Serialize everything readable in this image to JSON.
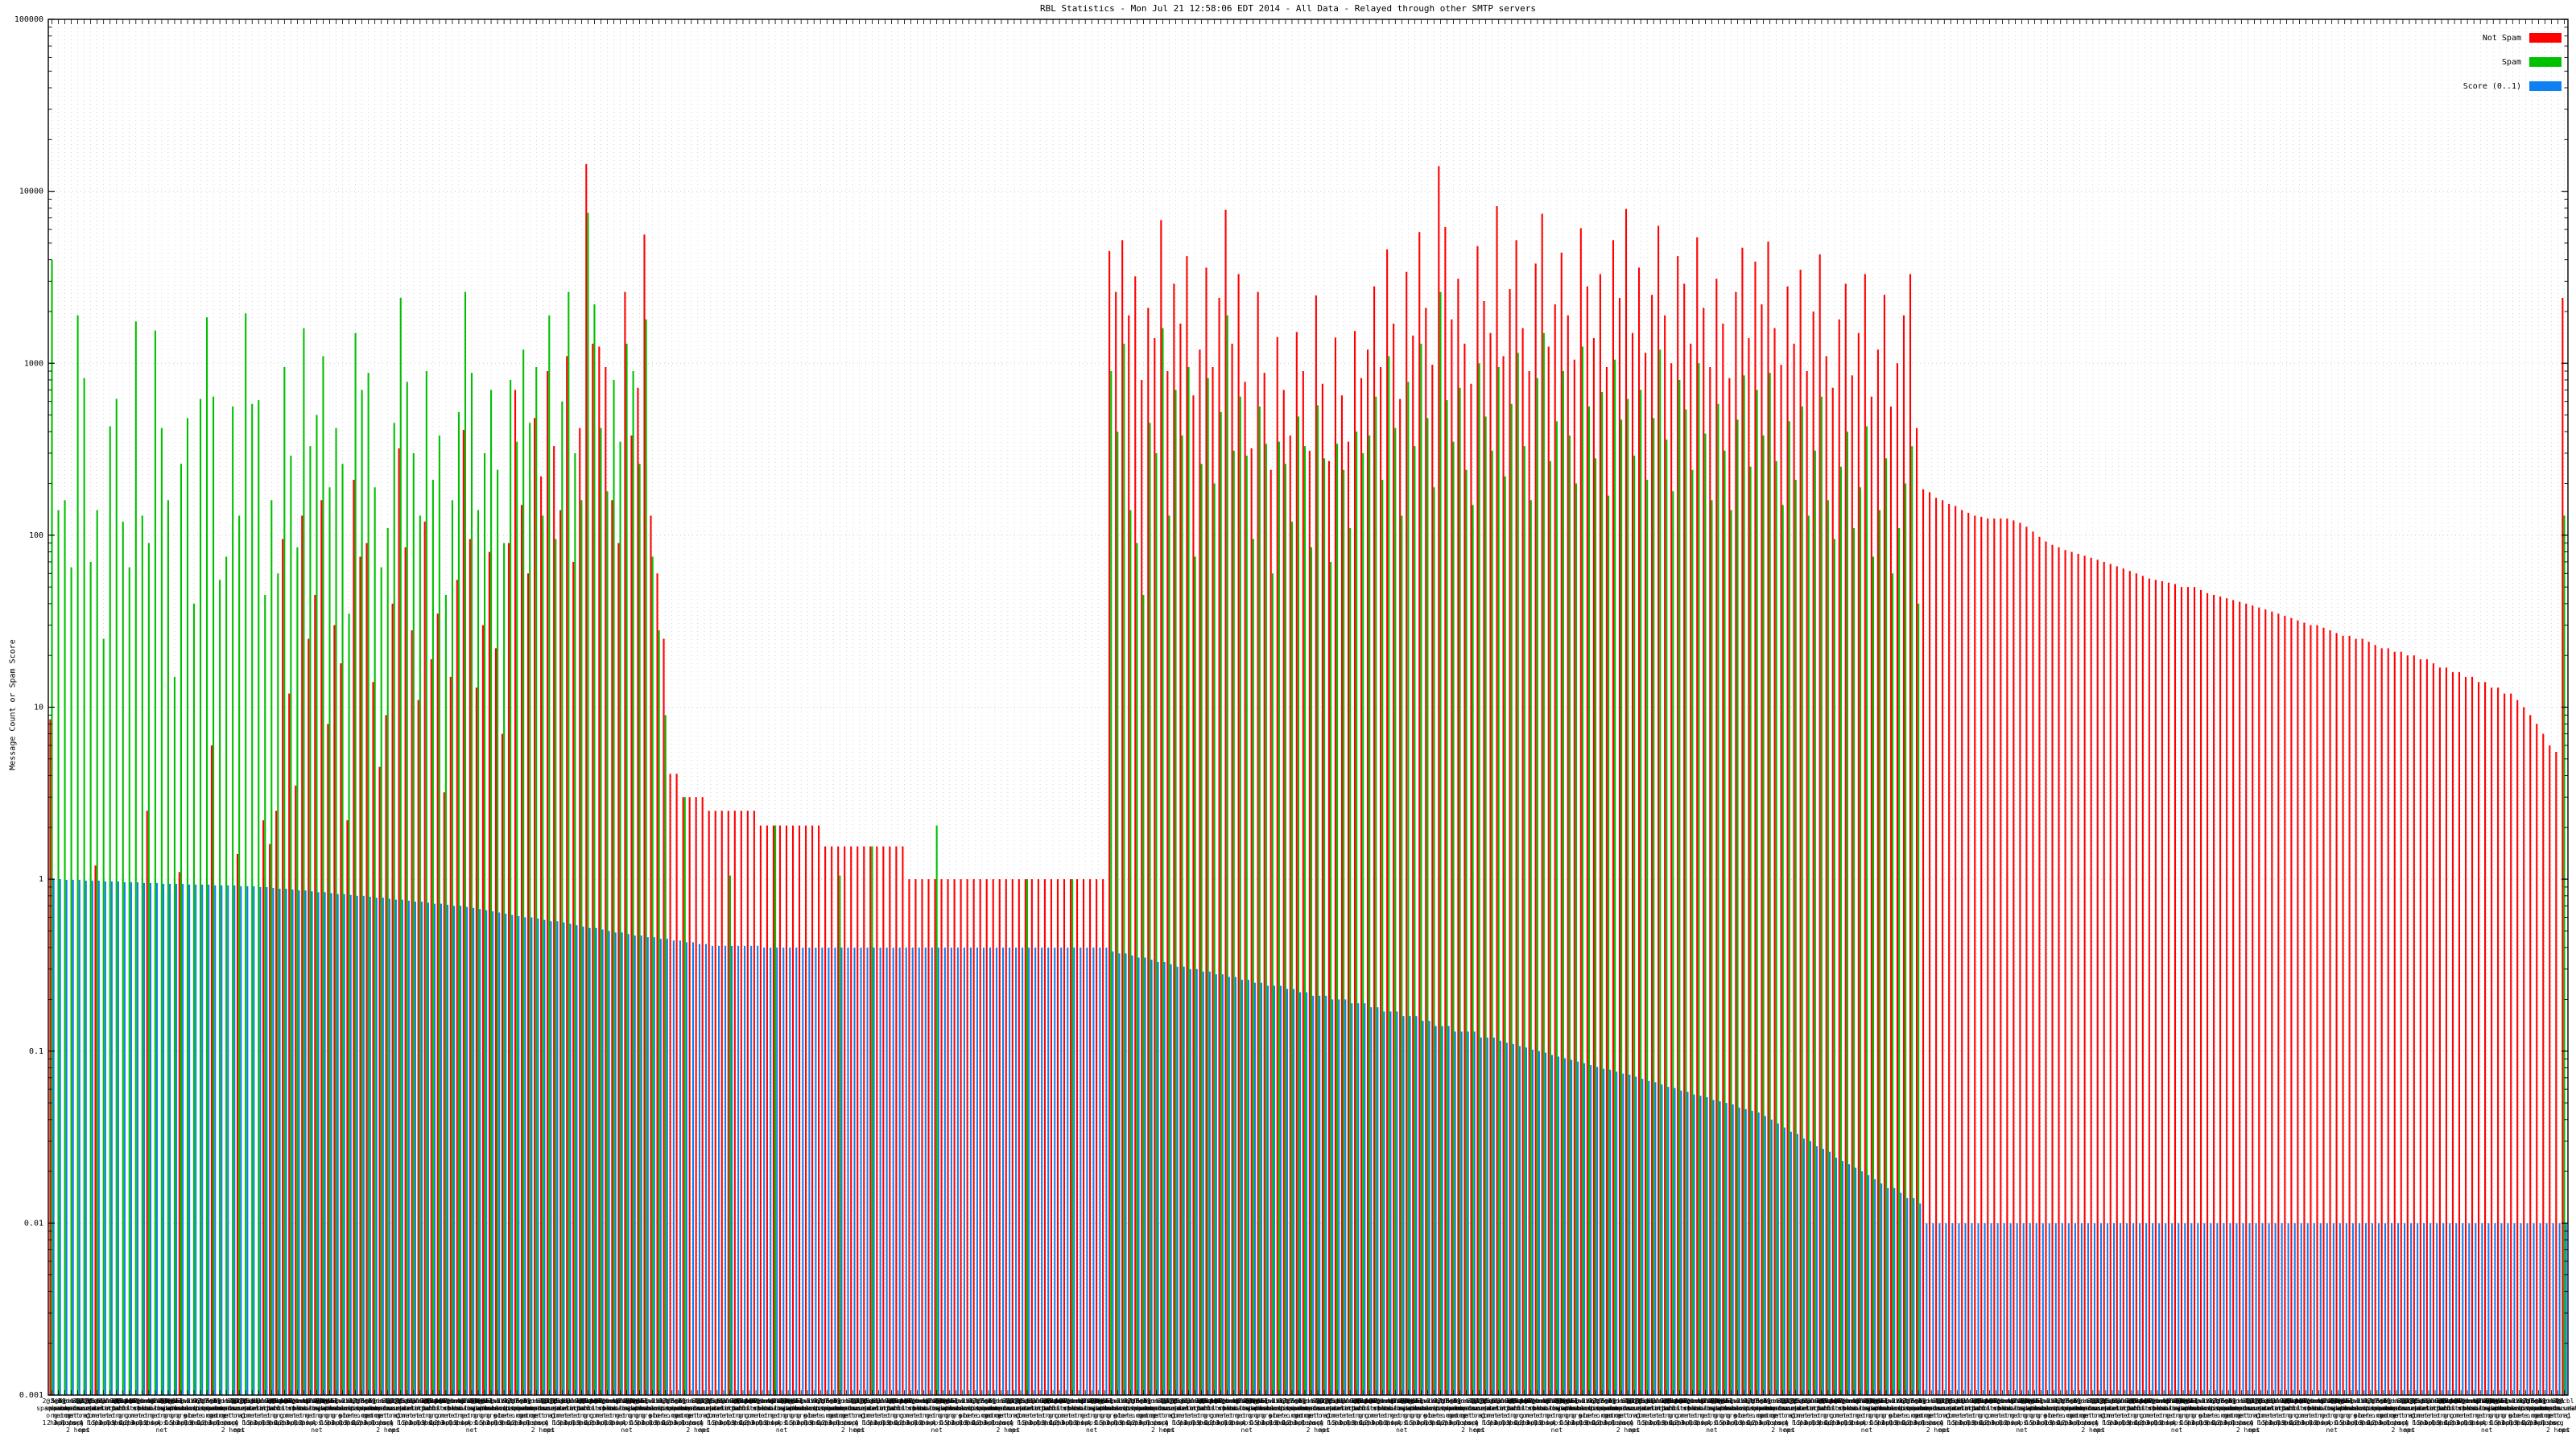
{
  "title": "RBL Statistics - Mon Jul 21 12:58:06 EDT 2014 - All Data - Relayed through other SMTP servers",
  "y_axis": {
    "label": "Message Count or Spam Score",
    "ticks": [
      "100000",
      "10000",
      "1000",
      "100",
      "10",
      "1",
      "0.1",
      "0.01",
      "0.001"
    ]
  },
  "legend": [
    {
      "label": "Not Spam",
      "color": "#ff0000"
    },
    {
      "label": "Spam",
      "color": "#00c000"
    },
    {
      "label": "Score (0..1)",
      "color": "#0d80f2"
    }
  ],
  "colors": {
    "not_spam": "#ff0000",
    "spam": "#00c000",
    "score": "#0d80f2",
    "grid": "#c0c0c0",
    "border": "#000000",
    "background": "#ffffff"
  },
  "chart_data": {
    "type": "bar",
    "title": "RBL Statistics - Mon Jul 21 12:58:06 EDT 2014 - All Data - Relayed through other SMTP servers",
    "ylabel": "Message Count or Spam Score",
    "ylog": true,
    "ylim": [
      0.001,
      100000
    ],
    "grid": true,
    "legend_position": "top-right",
    "series_names": [
      "Not Spam",
      "Spam",
      "Score (0..1)"
    ],
    "x_axis": {
      "style": "dense overlapping multi-line tick labels, one per bar group, mostly illegible",
      "score_prefixes": [
        "2",
        "3",
        "5.0",
        "2",
        "8",
        "4",
        "14",
        "2",
        "7",
        "15",
        "6",
        "9"
      ],
      "label_pool": [
        "zen|spamhaus|org",
        "bl|spamcop|net",
        "xbl|spamhaus|org",
        "dnsbl|sorbs|net",
        "b|barracuda|central|org",
        "cbl|abuseat|org",
        "psbl|surriel|com",
        "dnsbl-1|uceprotect|net",
        "ix.dnsbl|manitu|net",
        "dul.dnsbl|sorbs|net",
        "combined|njabl|org",
        "dnsbl|ahbl|org",
        "rbl|orbitrbl|com",
        "spam.dnsbl|sorbs|net",
        "web.dnsbl|sorbs|net",
        "zen2.0|spamhaus|org",
        "smtp.dnsbl|sorbs|net",
        "relays|mail-abuse|org",
        "dnsbl|njabl|org",
        "zen1.2|spamhaus|org",
        "sbl-xbl|spamhaus|org",
        "virbl|dnsbl.bit|nl",
        "zombie.dnsbl|sorbs|net",
        "bl|score.sender|score.com"
      ],
      "hop_suffixes": [
        "1 hop",
        "2 hops",
        "3 hops",
        "1 hop",
        "2 hops",
        "net",
        "4 hops",
        "1 hop",
        "5 hops",
        "2 hops",
        "1 hop",
        "3 hops"
      ]
    },
    "not_spam": [
      8.5,
      0,
      0,
      0,
      0,
      0,
      0,
      1.2,
      0,
      0,
      0,
      0,
      0,
      0,
      0,
      2.5,
      0,
      0,
      0,
      0,
      1.1,
      0,
      0,
      0,
      0,
      6,
      0,
      0,
      0,
      1.4,
      0,
      0,
      0,
      2.2,
      1.6,
      2.5,
      95,
      12,
      3.5,
      130,
      25,
      45,
      160,
      8,
      30,
      18,
      2.2,
      210,
      75,
      90,
      14,
      4.5,
      9,
      40,
      320,
      85,
      28,
      11,
      120,
      19,
      35,
      3.2,
      15,
      55,
      410,
      95,
      13,
      30,
      80,
      22,
      7,
      90,
      700,
      150,
      60,
      480,
      220,
      900,
      330,
      140,
      1100,
      70,
      420,
      14400,
      1300,
      1250,
      950,
      160,
      90,
      2600,
      380,
      720,
      5600,
      130,
      60,
      25,
      4.1,
      4.1,
      3,
      3,
      3,
      3,
      2.5,
      2.5,
      2.5,
      2.5,
      2.5,
      2.5,
      2.5,
      2.5,
      2.05,
      2.05,
      2.05,
      2.05,
      2.05,
      2.05,
      2.05,
      2.05,
      2.05,
      2.05,
      1.55,
      1.55,
      1.55,
      1.55,
      1.55,
      1.55,
      1.55,
      1.55,
      1.55,
      1.55,
      1.55,
      1.55,
      1.55,
      1,
      1,
      1,
      1,
      1,
      1,
      1,
      1,
      1,
      1,
      1,
      1,
      1,
      1,
      1,
      1,
      1,
      1,
      1,
      1,
      1,
      1,
      1,
      1,
      1,
      1,
      1,
      1,
      1,
      1,
      1,
      4500,
      2600,
      5200,
      1900,
      3200,
      800,
      2100,
      1400,
      6800,
      900,
      2900,
      1700,
      4200,
      650,
      1200,
      3600,
      950,
      2400,
      7800,
      1300,
      3300,
      780,
      320,
      2600,
      880,
      240,
      1420,
      700,
      380,
      1520,
      900,
      310,
      2480,
      760,
      270,
      1410,
      650,
      350,
      1540,
      820,
      1200,
      2800,
      950,
      4600,
      1700,
      620,
      3400,
      1450,
      5800,
      2100,
      980,
      14000,
      6200,
      1800,
      3100,
      1300,
      760,
      4800,
      2300,
      1500,
      8200,
      1100,
      2700,
      5200,
      1600,
      900,
      3800,
      7400,
      1250,
      2200,
      4400,
      1900,
      1050,
      6100,
      2800,
      1400,
      3300,
      950,
      5200,
      2400,
      7900,
      1500,
      3600,
      1150,
      2500,
      6300,
      1900,
      1000,
      4200,
      2900,
      1300,
      5400,
      2100,
      950,
      3100,
      1700,
      820,
      2600,
      4700,
      1400,
      3900,
      2200,
      5100,
      1600,
      980,
      2800,
      1300,
      3500,
      900,
      2000,
      4300,
      1100,
      720,
      1800,
      2900,
      850,
      1500,
      3300,
      640,
      1200,
      2500,
      560,
      1000,
      1900,
      3300,
      420,
      185,
      178,
      165,
      160,
      152,
      148,
      140,
      135,
      130,
      128,
      125,
      125,
      125,
      125,
      122,
      118,
      112,
      105,
      98,
      92,
      88,
      85,
      82,
      80,
      78,
      76,
      74,
      72,
      70,
      68,
      66,
      64,
      62,
      60,
      58,
      56,
      55,
      54,
      53,
      52,
      50,
      50,
      50,
      48,
      46,
      45,
      44,
      43,
      42,
      41,
      40,
      39,
      38,
      37,
      36,
      35,
      34,
      33,
      32,
      31,
      30,
      30,
      29,
      28,
      27,
      26,
      26,
      25,
      25,
      24,
      23,
      22,
      22,
      21,
      21,
      20,
      20,
      19,
      19,
      18,
      17,
      17,
      16,
      16,
      15,
      15,
      14,
      14,
      13,
      13,
      12,
      12,
      11,
      10,
      9,
      8,
      7,
      6,
      5.5,
      2400
    ],
    "spam": [
      4000,
      140,
      160,
      65,
      1900,
      820,
      70,
      140,
      25,
      430,
      620,
      120,
      65,
      1750,
      130,
      90,
      1550,
      420,
      160,
      15,
      260,
      480,
      40,
      620,
      1850,
      640,
      55,
      75,
      560,
      130,
      1950,
      580,
      610,
      45,
      160,
      60,
      950,
      290,
      85,
      1600,
      330,
      500,
      1100,
      190,
      420,
      260,
      35,
      1500,
      700,
      880,
      190,
      65,
      110,
      450,
      2400,
      780,
      300,
      130,
      900,
      210,
      380,
      45,
      160,
      520,
      2600,
      880,
      140,
      300,
      700,
      240,
      90,
      800,
      350,
      1200,
      450,
      950,
      130,
      1900,
      95,
      600,
      2600,
      300,
      160,
      7500,
      2200,
      420,
      180,
      800,
      350,
      1300,
      900,
      260,
      1800,
      75,
      28,
      9,
      0,
      0,
      3,
      0,
      0,
      0,
      0,
      0,
      0,
      1.05,
      0,
      0,
      0,
      0,
      0,
      0,
      2.05,
      0,
      0,
      0,
      0,
      0,
      0,
      0,
      0,
      0,
      1.05,
      0,
      0,
      0,
      0,
      1.55,
      0,
      0,
      0,
      0,
      0,
      0,
      0,
      0,
      0,
      2.05,
      0,
      0,
      0,
      0,
      0,
      0,
      0,
      0,
      0,
      0,
      0,
      0,
      0,
      1,
      0,
      0,
      0,
      0,
      0,
      0,
      1,
      0,
      0,
      0,
      0,
      0,
      900,
      400,
      1300,
      140,
      90,
      45,
      450,
      300,
      1600,
      130,
      700,
      380,
      950,
      75,
      260,
      820,
      200,
      520,
      1900,
      310,
      640,
      290,
      95,
      560,
      340,
      60,
      350,
      260,
      120,
      490,
      330,
      85,
      570,
      280,
      70,
      340,
      240,
      110,
      400,
      300,
      380,
      640,
      210,
      1100,
      420,
      130,
      780,
      330,
      1300,
      480,
      190,
      2600,
      610,
      350,
      720,
      240,
      150,
      1000,
      490,
      310,
      950,
      220,
      580,
      1150,
      330,
      160,
      820,
      1500,
      270,
      460,
      900,
      380,
      200,
      1250,
      560,
      280,
      680,
      170,
      1050,
      470,
      620,
      290,
      700,
      210,
      480,
      1200,
      360,
      180,
      800,
      540,
      240,
      1000,
      390,
      160,
      580,
      310,
      140,
      470,
      850,
      250,
      700,
      380,
      880,
      270,
      150,
      460,
      210,
      560,
      130,
      310,
      640,
      160,
      95,
      250,
      400,
      110,
      190,
      430,
      75,
      140,
      280,
      60,
      110,
      200,
      330,
      40,
      0,
      0,
      0,
      0,
      0,
      0,
      0,
      0,
      0,
      0,
      0,
      0,
      0,
      0,
      0,
      0,
      0,
      0,
      0,
      0,
      0,
      0,
      0,
      0,
      0,
      0,
      0,
      0,
      0,
      0,
      0,
      0,
      0,
      0,
      0,
      0,
      0,
      0,
      0,
      0,
      0,
      0,
      0,
      0,
      0,
      0,
      0,
      0,
      0,
      0,
      0,
      0,
      0,
      0,
      0,
      0,
      0,
      0,
      0,
      0,
      0,
      0,
      0,
      0,
      0,
      0,
      0,
      0,
      0,
      0,
      0,
      0,
      0,
      0,
      0,
      0,
      0,
      0,
      0,
      0,
      0,
      0,
      0,
      0,
      0,
      0,
      0,
      0,
      0,
      0,
      0,
      0,
      0,
      0,
      0,
      0,
      0,
      0,
      0,
      130
    ],
    "score": [
      1.0,
      1.0,
      0.99,
      0.99,
      0.99,
      0.98,
      0.98,
      0.98,
      0.97,
      0.97,
      0.97,
      0.96,
      0.96,
      0.96,
      0.95,
      0.95,
      0.95,
      0.94,
      0.94,
      0.94,
      0.94,
      0.93,
      0.93,
      0.93,
      0.93,
      0.92,
      0.92,
      0.92,
      0.92,
      0.91,
      0.91,
      0.91,
      0.9,
      0.9,
      0.89,
      0.88,
      0.88,
      0.87,
      0.86,
      0.86,
      0.85,
      0.84,
      0.84,
      0.83,
      0.82,
      0.82,
      0.81,
      0.8,
      0.8,
      0.79,
      0.78,
      0.78,
      0.77,
      0.76,
      0.76,
      0.75,
      0.74,
      0.74,
      0.73,
      0.72,
      0.72,
      0.71,
      0.7,
      0.7,
      0.69,
      0.68,
      0.67,
      0.66,
      0.65,
      0.64,
      0.63,
      0.62,
      0.61,
      0.6,
      0.6,
      0.59,
      0.58,
      0.57,
      0.57,
      0.56,
      0.55,
      0.54,
      0.53,
      0.52,
      0.52,
      0.51,
      0.5,
      0.49,
      0.49,
      0.48,
      0.47,
      0.47,
      0.46,
      0.46,
      0.45,
      0.45,
      0.44,
      0.44,
      0.43,
      0.43,
      0.42,
      0.42,
      0.41,
      0.41,
      0.41,
      0.41,
      0.41,
      0.41,
      0.41,
      0.41,
      0.4,
      0.4,
      0.4,
      0.4,
      0.4,
      0.4,
      0.4,
      0.4,
      0.4,
      0.4,
      0.4,
      0.4,
      0.4,
      0.4,
      0.4,
      0.4,
      0.4,
      0.4,
      0.4,
      0.4,
      0.4,
      0.4,
      0.4,
      0.4,
      0.4,
      0.4,
      0.4,
      0.4,
      0.4,
      0.4,
      0.4,
      0.4,
      0.4,
      0.4,
      0.4,
      0.4,
      0.4,
      0.4,
      0.4,
      0.4,
      0.4,
      0.4,
      0.4,
      0.4,
      0.4,
      0.4,
      0.4,
      0.4,
      0.4,
      0.4,
      0.4,
      0.4,
      0.4,
      0.4,
      0.38,
      0.37,
      0.37,
      0.36,
      0.35,
      0.35,
      0.34,
      0.33,
      0.33,
      0.32,
      0.31,
      0.31,
      0.3,
      0.3,
      0.29,
      0.29,
      0.28,
      0.28,
      0.27,
      0.27,
      0.26,
      0.26,
      0.25,
      0.25,
      0.24,
      0.24,
      0.24,
      0.23,
      0.23,
      0.22,
      0.22,
      0.21,
      0.21,
      0.21,
      0.2,
      0.2,
      0.2,
      0.19,
      0.19,
      0.19,
      0.18,
      0.18,
      0.17,
      0.17,
      0.17,
      0.16,
      0.16,
      0.16,
      0.15,
      0.15,
      0.14,
      0.14,
      0.14,
      0.13,
      0.13,
      0.13,
      0.13,
      0.12,
      0.12,
      0.12,
      0.115,
      0.112,
      0.11,
      0.107,
      0.105,
      0.102,
      0.1,
      0.098,
      0.095,
      0.093,
      0.091,
      0.089,
      0.087,
      0.085,
      0.083,
      0.081,
      0.079,
      0.078,
      0.076,
      0.074,
      0.073,
      0.071,
      0.069,
      0.067,
      0.066,
      0.064,
      0.062,
      0.061,
      0.059,
      0.058,
      0.056,
      0.055,
      0.054,
      0.052,
      0.051,
      0.05,
      0.049,
      0.047,
      0.046,
      0.045,
      0.044,
      0.042,
      0.04,
      0.038,
      0.036,
      0.034,
      0.033,
      0.031,
      0.03,
      0.028,
      0.027,
      0.026,
      0.024,
      0.023,
      0.022,
      0.021,
      0.02,
      0.019,
      0.018,
      0.017,
      0.016,
      0.016,
      0.015,
      0.014,
      0.014,
      0.013,
      0.01,
      0.01,
      0.01,
      0.01,
      0.01,
      0.01,
      0.01,
      0.01,
      0.01,
      0.01,
      0.01,
      0.01,
      0.01,
      0.01,
      0.01,
      0.01,
      0.01,
      0.01,
      0.01,
      0.01,
      0.01,
      0.01,
      0.01,
      0.01,
      0.01,
      0.01,
      0.01,
      0.01,
      0.01,
      0.01,
      0.01,
      0.01,
      0.01,
      0.01,
      0.01,
      0.01,
      0.01,
      0.01,
      0.01,
      0.01,
      0.01,
      0.01,
      0.01,
      0.01,
      0.01,
      0.01,
      0.01,
      0.01,
      0.01,
      0.01,
      0.01,
      0.01,
      0.01,
      0.01,
      0.01,
      0.01,
      0.01,
      0.01,
      0.01,
      0.01,
      0.01,
      0.01,
      0.01,
      0.01,
      0.01,
      0.01,
      0.01,
      0.01,
      0.01,
      0.01,
      0.01,
      0.01,
      0.01,
      0.01,
      0.01,
      0.01,
      0.01,
      0.01,
      0.01,
      0.01,
      0.01,
      0.01,
      0.01,
      0.01,
      0.01,
      0.01,
      0.01,
      0.01,
      0.01,
      0.01,
      0.01,
      0.01,
      0.01,
      0.01,
      0.01,
      0.01,
      0.01,
      0.01,
      0.01,
      0.01
    ]
  }
}
